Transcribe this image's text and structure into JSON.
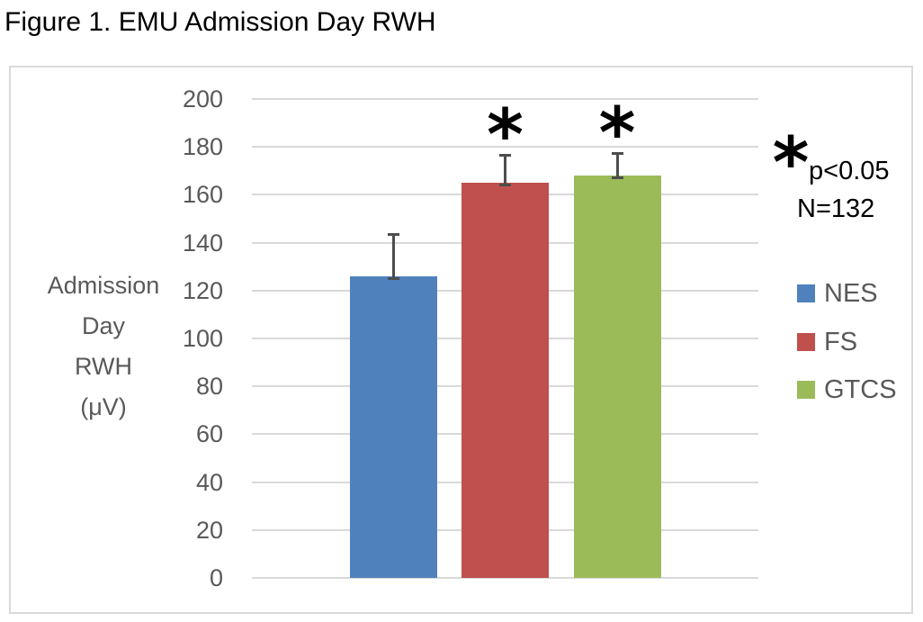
{
  "figure_title": "Figure 1. EMU Admission Day RWH",
  "chart_data": {
    "type": "bar",
    "title": "Figure 1. EMU Admission Day RWH",
    "categories": [
      "NES",
      "FS",
      "GTCS"
    ],
    "values": [
      126,
      165,
      168
    ],
    "error_plus": [
      18,
      12,
      10
    ],
    "significant": [
      false,
      true,
      true
    ],
    "colors": [
      "#4F81BD",
      "#C0504D",
      "#9BBB59"
    ],
    "ylabel_lines": [
      "Admission",
      "Day",
      "RWH",
      "(μV)"
    ],
    "ylabel": "Admission Day RWH (μV)",
    "xlabel": "",
    "ylim": [
      0,
      200
    ],
    "yticks": [
      0,
      20,
      40,
      60,
      80,
      100,
      120,
      140,
      160,
      180,
      200
    ],
    "grid": true,
    "grid_color": "#d9d9d9",
    "tick_color": "#595959",
    "legend_position": "right",
    "legend": [
      {
        "label": "NES",
        "color": "#4F81BD"
      },
      {
        "label": "FS",
        "color": "#C0504D"
      },
      {
        "label": "GTCS",
        "color": "#9BBB59"
      }
    ],
    "annotations": {
      "sig_marker": "*",
      "sig_note": "p<0.05",
      "n_note": "N=132"
    }
  }
}
